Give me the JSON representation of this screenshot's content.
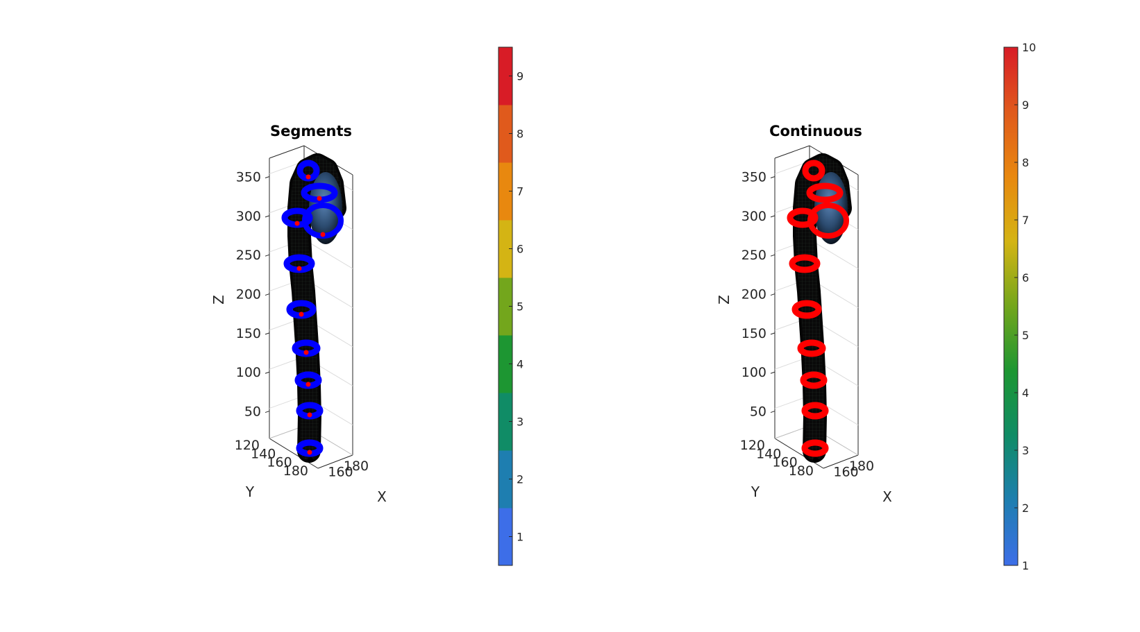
{
  "chart_data": [
    {
      "type": "other",
      "plot_kind": "3d-surface",
      "title": "Segments",
      "xlabel": "X",
      "ylabel": "Y",
      "zlabel": "Z",
      "x_ticks": [
        "160",
        "180"
      ],
      "y_ticks": [
        "120",
        "140",
        "160",
        "180"
      ],
      "z_ticks": [
        "50",
        "100",
        "150",
        "200",
        "250",
        "300",
        "350"
      ],
      "zlim": [
        15,
        370
      ],
      "grid": true,
      "ring_color": "#0000ff",
      "colorbar": {
        "ticks": [
          "1",
          "2",
          "3",
          "4",
          "5",
          "6",
          "7",
          "8",
          "9"
        ],
        "range": [
          0.5,
          9.5
        ],
        "discrete": true,
        "colors": [
          "#3d6ee8",
          "#1e7eb0",
          "#108c66",
          "#1d9632",
          "#73a61c",
          "#d4b414",
          "#e8880f",
          "#e05a1c",
          "#d81c26"
        ]
      }
    },
    {
      "type": "other",
      "plot_kind": "3d-surface",
      "title": "Continuous",
      "xlabel": "X",
      "ylabel": "Y",
      "zlabel": "Z",
      "x_ticks": [
        "160",
        "180"
      ],
      "y_ticks": [
        "120",
        "140",
        "160",
        "180"
      ],
      "z_ticks": [
        "50",
        "100",
        "150",
        "200",
        "250",
        "300",
        "350"
      ],
      "zlim": [
        15,
        370
      ],
      "grid": true,
      "ring_color": "#ff0000",
      "colorbar": {
        "ticks": [
          "1",
          "2",
          "3",
          "4",
          "5",
          "6",
          "7",
          "8",
          "9",
          "10"
        ],
        "range": [
          1,
          10
        ],
        "discrete": false,
        "colors": [
          "#3d6ee8",
          "#1e7eb0",
          "#108c66",
          "#1d9632",
          "#73a61c",
          "#d4b414",
          "#e8880f",
          "#e05a1c",
          "#d81c26"
        ]
      }
    }
  ]
}
